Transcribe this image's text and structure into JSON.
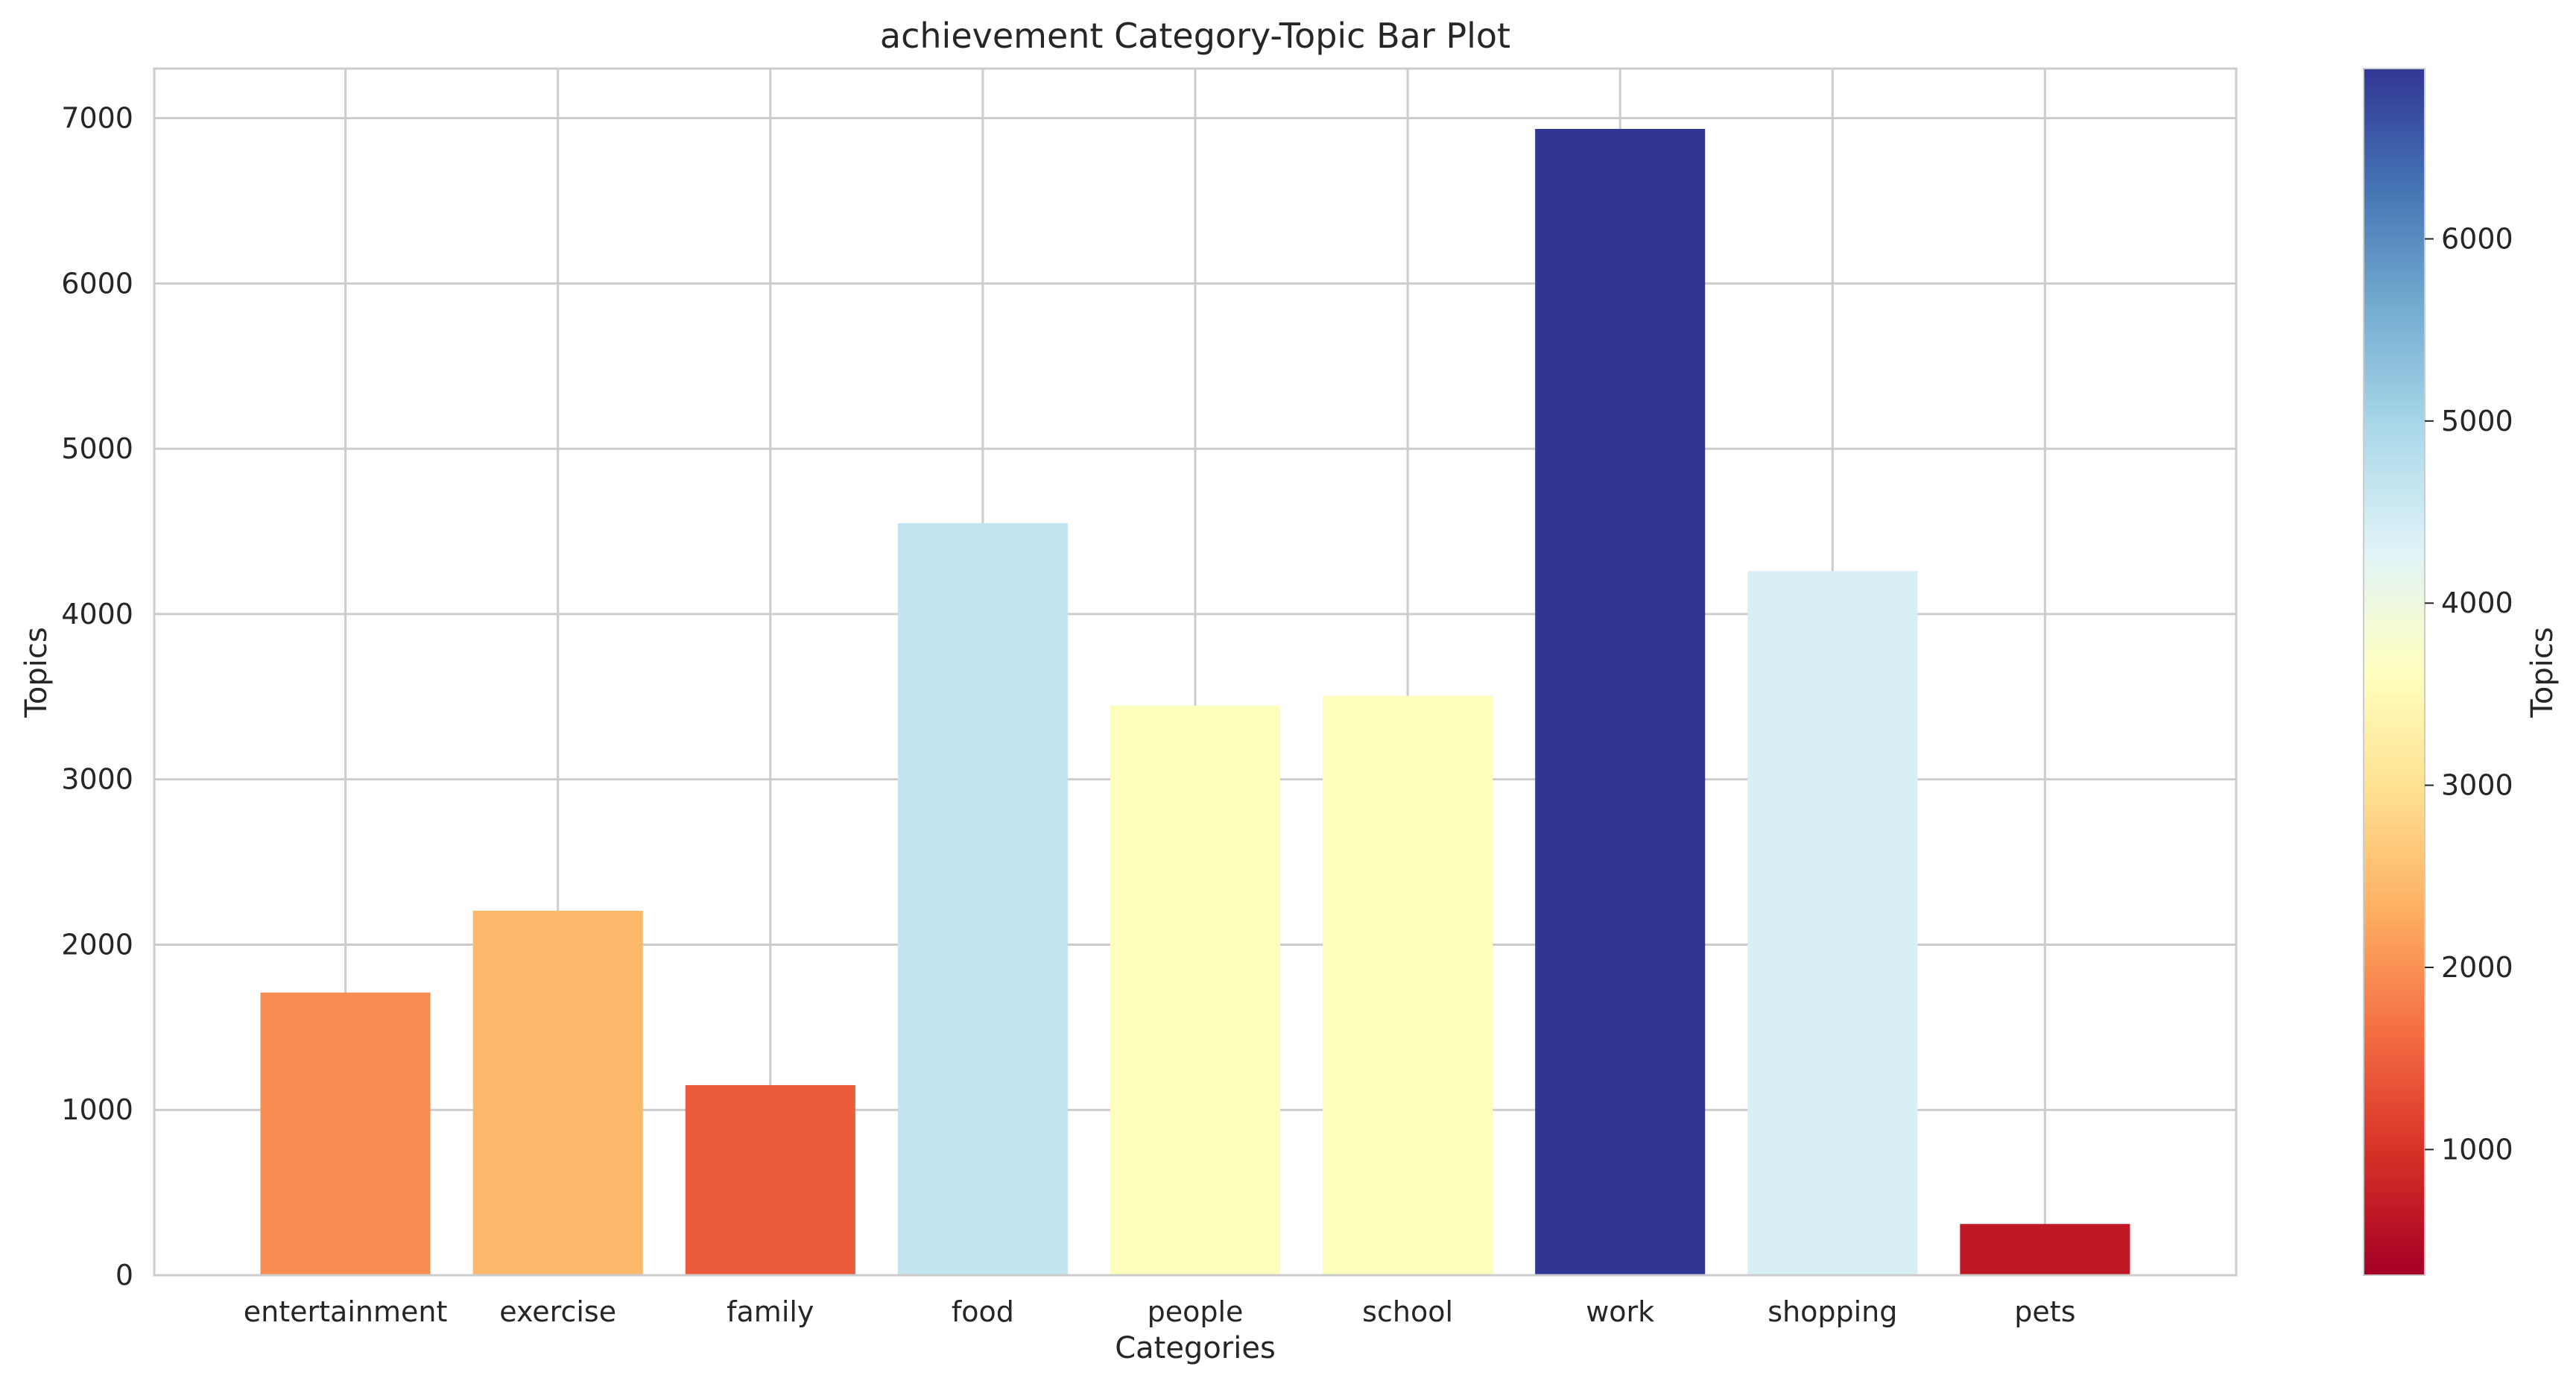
{
  "chart_data": {
    "type": "bar",
    "title": "achievement Category-Topic Bar Plot",
    "xlabel": "Categories",
    "ylabel": "Topics",
    "categories": [
      "entertainment",
      "exercise",
      "family",
      "food",
      "people",
      "school",
      "work",
      "shopping",
      "pets"
    ],
    "values": [
      1710,
      2205,
      1150,
      4550,
      3445,
      3505,
      6935,
      4260,
      310
    ],
    "bar_colors": [
      "#f88d52",
      "#fbb86b",
      "#ec5b3b",
      "#c3e5ef",
      "#fefebc",
      "#fefebc",
      "#313694",
      "#d8eff6",
      "#be1825"
    ],
    "ylim": [
      0,
      7300
    ],
    "yticks": [
      0,
      1000,
      2000,
      3000,
      4000,
      5000,
      6000,
      7000
    ],
    "grid": true,
    "colorbar": {
      "label": "Topics",
      "range": [
        310,
        6935
      ],
      "ticks": [
        1000,
        2000,
        3000,
        4000,
        5000,
        6000
      ],
      "colormap": "RdYlBu",
      "stops": [
        "#a50026",
        "#d73027",
        "#f46d43",
        "#fdae61",
        "#fee090",
        "#ffffbf",
        "#e0f3f8",
        "#abd9e9",
        "#74add1",
        "#4575b4",
        "#313695"
      ]
    }
  }
}
